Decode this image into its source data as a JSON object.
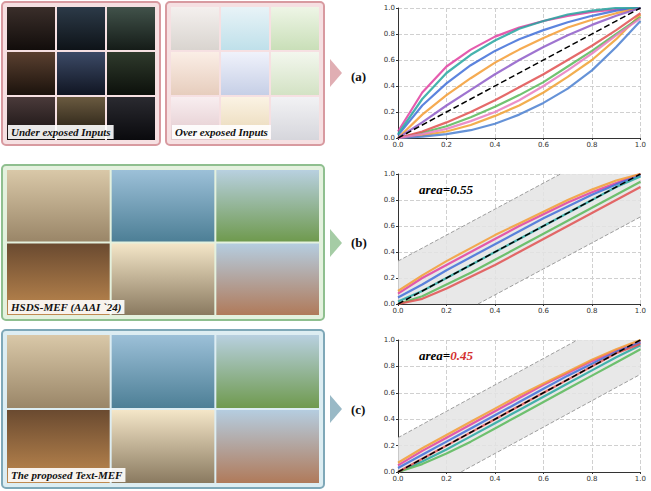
{
  "inputs": {
    "under": "Under exposed Inputs",
    "over": "Over exposed Inputs"
  },
  "results": [
    {
      "method": "HSDS-MEF (AAAI `24)"
    },
    {
      "method": "The proposed Text-MEF"
    }
  ],
  "chart_data": [
    {
      "type": "line",
      "panel": "(a)",
      "grid": true,
      "marker": "none",
      "line_style": "solid",
      "xlim": [
        0,
        1
      ],
      "ylim": [
        0,
        1
      ],
      "xticks": [
        {
          "value": 0,
          "label": "0.0"
        },
        {
          "value": 0.2,
          "label": "0.2"
        },
        {
          "value": 0.4,
          "label": "0.4"
        },
        {
          "value": 0.6,
          "label": "0.6"
        },
        {
          "value": 0.8,
          "label": "0.8"
        },
        {
          "value": 1,
          "label": "1.0"
        }
      ],
      "yticks": [
        {
          "value": 0,
          "label": "0.0"
        },
        {
          "value": 0.2,
          "label": "0.2"
        },
        {
          "value": 0.4,
          "label": "0.4"
        },
        {
          "value": 0.6,
          "label": "0.6"
        },
        {
          "value": 0.8,
          "label": "0.8"
        },
        {
          "value": 1,
          "label": "1.0"
        }
      ],
      "x": [
        0,
        0.1,
        0.2,
        0.3,
        0.4,
        0.5,
        0.6,
        0.7,
        0.8,
        0.9,
        1
      ],
      "series": [
        {
          "color": "#e040a0",
          "values": [
            0.05,
            0.35,
            0.55,
            0.68,
            0.78,
            0.85,
            0.9,
            0.94,
            0.97,
            0.99,
            1
          ]
        },
        {
          "color": "#3f6fd8",
          "values": [
            0.02,
            0.25,
            0.42,
            0.56,
            0.67,
            0.76,
            0.83,
            0.89,
            0.94,
            0.98,
            1
          ]
        },
        {
          "color": "#f39c34",
          "values": [
            0,
            0.18,
            0.33,
            0.46,
            0.58,
            0.68,
            0.77,
            0.85,
            0.91,
            0.96,
            1
          ]
        },
        {
          "color": "#26a6a0",
          "values": [
            0.03,
            0.3,
            0.5,
            0.64,
            0.75,
            0.84,
            0.9,
            0.95,
            0.98,
            1,
            1
          ]
        },
        {
          "color": "#8e5cc8",
          "values": [
            0,
            0.12,
            0.25,
            0.37,
            0.49,
            0.6,
            0.7,
            0.79,
            0.87,
            0.94,
            1
          ]
        },
        {
          "color": "#f0a030",
          "values": [
            0,
            0.02,
            0.05,
            0.1,
            0.17,
            0.25,
            0.35,
            0.47,
            0.6,
            0.76,
            0.95
          ]
        },
        {
          "color": "#58b858",
          "values": [
            0,
            0.04,
            0.09,
            0.16,
            0.24,
            0.33,
            0.43,
            0.55,
            0.67,
            0.8,
            0.93
          ]
        },
        {
          "color": "#4a7fd0",
          "values": [
            0,
            0.01,
            0.03,
            0.06,
            0.11,
            0.18,
            0.27,
            0.38,
            0.52,
            0.7,
            0.9
          ]
        },
        {
          "color": "#e05050",
          "values": [
            0,
            0.05,
            0.12,
            0.2,
            0.29,
            0.39,
            0.49,
            0.6,
            0.71,
            0.83,
            0.96
          ]
        },
        {
          "color": "#e87cc0",
          "values": [
            0,
            0.03,
            0.07,
            0.13,
            0.2,
            0.29,
            0.4,
            0.52,
            0.65,
            0.79,
            0.92
          ]
        }
      ],
      "reference": {
        "x": [
          0,
          1
        ],
        "values": [
          0,
          1
        ],
        "color": "#000000",
        "line_style": "dashed"
      }
    },
    {
      "type": "line",
      "panel": "(b)",
      "grid": true,
      "marker": "none",
      "line_style": "solid",
      "xlim": [
        0,
        1
      ],
      "ylim": [
        0,
        1
      ],
      "xticks": [
        {
          "value": 0,
          "label": "0.0"
        },
        {
          "value": 0.2,
          "label": "0.2"
        },
        {
          "value": 0.4,
          "label": "0.4"
        },
        {
          "value": 0.6,
          "label": "0.6"
        },
        {
          "value": 0.8,
          "label": "0.8"
        },
        {
          "value": 1,
          "label": "1.0"
        }
      ],
      "yticks": [
        {
          "value": 0,
          "label": "0.0"
        },
        {
          "value": 0.2,
          "label": "0.2"
        },
        {
          "value": 0.4,
          "label": "0.4"
        },
        {
          "value": 0.6,
          "label": "0.6"
        },
        {
          "value": 0.8,
          "label": "0.8"
        },
        {
          "value": 1,
          "label": "1.0"
        }
      ],
      "x": [
        0,
        0.1,
        0.2,
        0.3,
        0.4,
        0.5,
        0.6,
        0.7,
        0.8,
        0.9,
        1
      ],
      "series": [
        {
          "color": "#e040a0",
          "values": [
            0.08,
            0.2,
            0.3,
            0.4,
            0.5,
            0.6,
            0.69,
            0.78,
            0.86,
            0.93,
            1
          ]
        },
        {
          "color": "#3f6fd8",
          "values": [
            0.05,
            0.15,
            0.26,
            0.36,
            0.46,
            0.56,
            0.66,
            0.75,
            0.84,
            0.92,
            0.99
          ]
        },
        {
          "color": "#f39c34",
          "values": [
            0.1,
            0.22,
            0.33,
            0.43,
            0.53,
            0.62,
            0.71,
            0.8,
            0.88,
            0.95,
            1
          ]
        },
        {
          "color": "#26a6a0",
          "values": [
            0.02,
            0.1,
            0.2,
            0.3,
            0.4,
            0.5,
            0.6,
            0.7,
            0.8,
            0.9,
            0.98
          ]
        },
        {
          "color": "#58b858",
          "values": [
            0,
            0.06,
            0.15,
            0.24,
            0.34,
            0.44,
            0.54,
            0.64,
            0.74,
            0.84,
            0.94
          ]
        },
        {
          "color": "#e05050",
          "values": [
            0,
            0.04,
            0.12,
            0.21,
            0.3,
            0.4,
            0.5,
            0.6,
            0.7,
            0.8,
            0.9
          ]
        }
      ],
      "reference": {
        "x": [
          0,
          1
        ],
        "values": [
          0,
          1
        ],
        "color": "#000000",
        "line_style": "dashed"
      },
      "band": {
        "upper": [
          [
            0,
            0.33
          ],
          [
            0.67,
            1
          ]
        ],
        "lower": [
          [
            0.33,
            0
          ],
          [
            1,
            0.67
          ]
        ],
        "color": "#9e9e9e",
        "line_style": "dashed"
      },
      "annotation": {
        "text": "area=",
        "value": 0.55,
        "color": "#000000",
        "value_color": "#000000"
      }
    },
    {
      "type": "line",
      "panel": "(c)",
      "grid": true,
      "marker": "none",
      "line_style": "solid",
      "xlim": [
        0,
        1
      ],
      "ylim": [
        0,
        1
      ],
      "xticks": [
        {
          "value": 0,
          "label": "0.0"
        },
        {
          "value": 0.2,
          "label": "0.2"
        },
        {
          "value": 0.4,
          "label": "0.4"
        },
        {
          "value": 0.6,
          "label": "0.6"
        },
        {
          "value": 0.8,
          "label": "0.8"
        },
        {
          "value": 1,
          "label": "1.0"
        }
      ],
      "yticks": [
        {
          "value": 0,
          "label": "0.0"
        },
        {
          "value": 0.2,
          "label": "0.2"
        },
        {
          "value": 0.4,
          "label": "0.4"
        },
        {
          "value": 0.6,
          "label": "0.6"
        },
        {
          "value": 0.8,
          "label": "0.8"
        },
        {
          "value": 1,
          "label": "1.0"
        }
      ],
      "x": [
        0,
        0.1,
        0.2,
        0.3,
        0.4,
        0.5,
        0.6,
        0.7,
        0.8,
        0.9,
        1
      ],
      "series": [
        {
          "color": "#e040a0",
          "values": [
            0.05,
            0.16,
            0.26,
            0.36,
            0.46,
            0.56,
            0.66,
            0.75,
            0.84,
            0.92,
            0.99
          ]
        },
        {
          "color": "#3f6fd8",
          "values": [
            0.03,
            0.13,
            0.23,
            0.33,
            0.43,
            0.53,
            0.63,
            0.73,
            0.82,
            0.91,
            0.98
          ]
        },
        {
          "color": "#f39c34",
          "values": [
            0.07,
            0.18,
            0.28,
            0.38,
            0.48,
            0.58,
            0.67,
            0.76,
            0.85,
            0.93,
            1
          ]
        },
        {
          "color": "#26a6a0",
          "values": [
            0,
            0.08,
            0.17,
            0.27,
            0.37,
            0.47,
            0.57,
            0.67,
            0.77,
            0.87,
            0.96
          ]
        },
        {
          "color": "#58b858",
          "values": [
            0,
            0.06,
            0.14,
            0.23,
            0.33,
            0.43,
            0.53,
            0.63,
            0.73,
            0.83,
            0.93
          ]
        },
        {
          "color": "#e05050",
          "values": [
            0,
            0.1,
            0.2,
            0.3,
            0.4,
            0.5,
            0.6,
            0.7,
            0.8,
            0.9,
            0.97
          ]
        }
      ],
      "reference": {
        "x": [
          0,
          1
        ],
        "values": [
          0,
          1
        ],
        "color": "#000000",
        "line_style": "dashed"
      },
      "band": {
        "upper": [
          [
            0,
            0.26
          ],
          [
            0.74,
            1
          ]
        ],
        "lower": [
          [
            0.26,
            0
          ],
          [
            1,
            0.74
          ]
        ],
        "color": "#9e9e9e",
        "line_style": "dashed"
      },
      "annotation": {
        "text": "area=",
        "value": 0.45,
        "color": "#000000",
        "value_color": "#d32f2f"
      }
    }
  ]
}
